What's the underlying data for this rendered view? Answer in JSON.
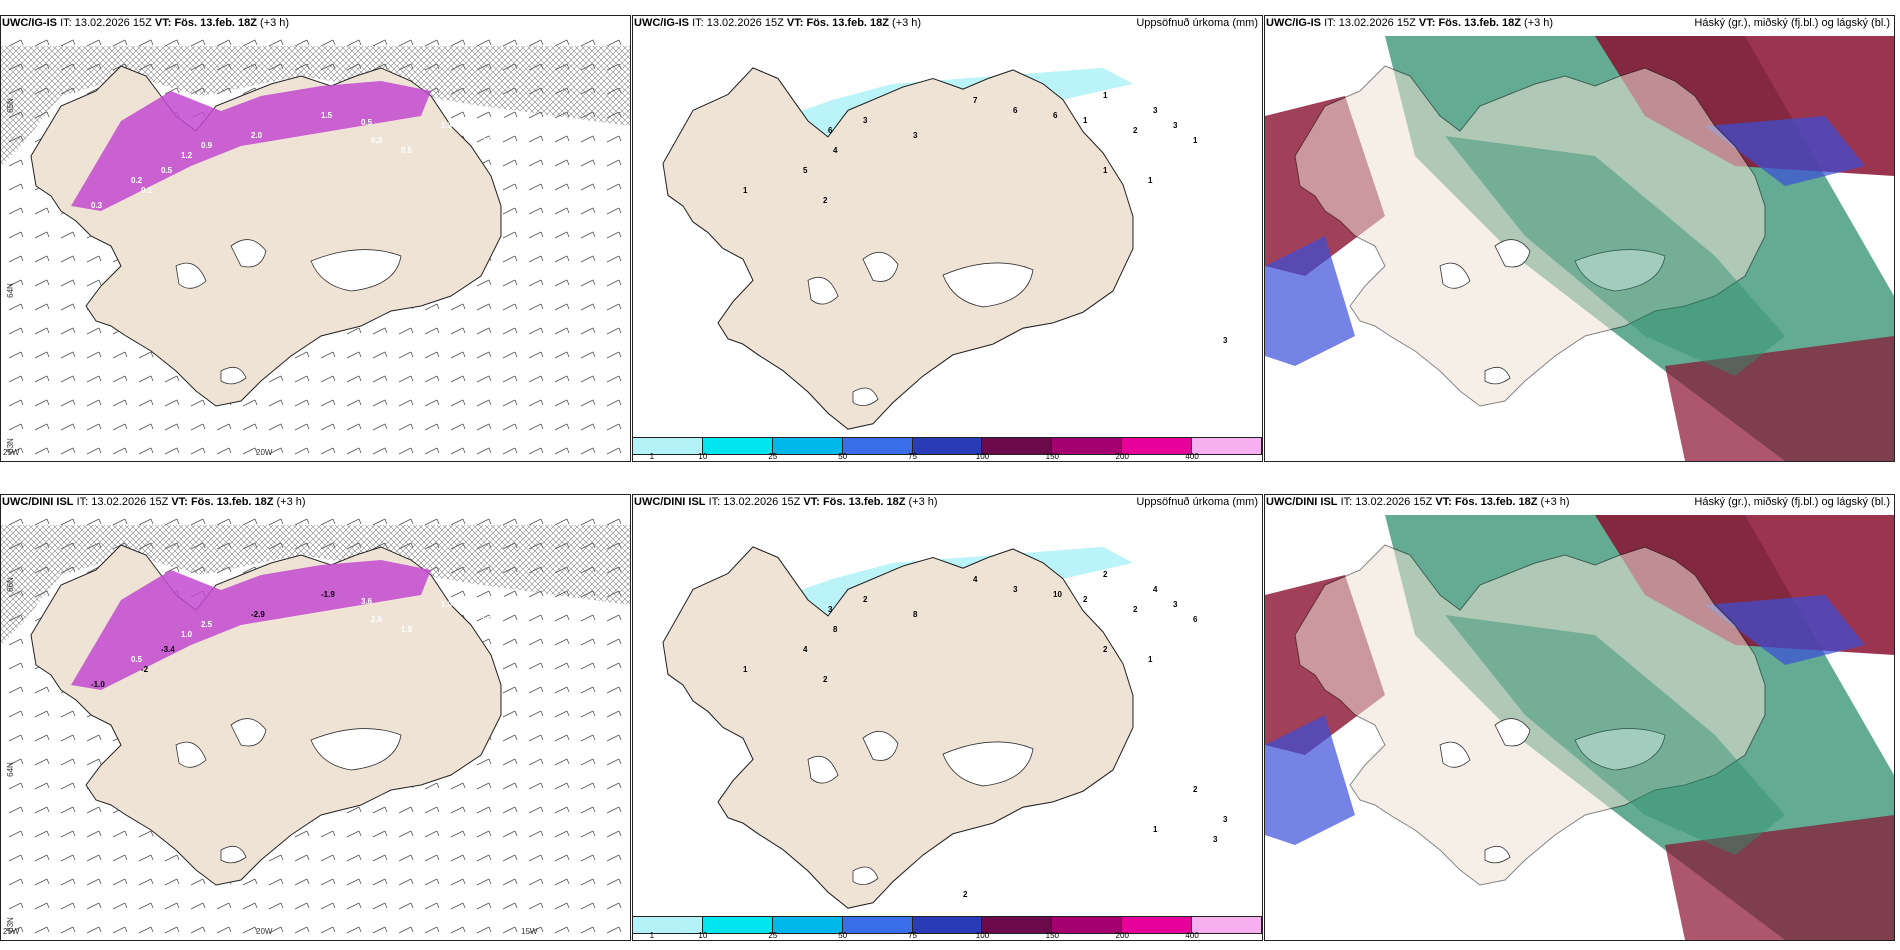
{
  "panels": [
    {
      "id": "top-left",
      "header": {
        "model": "UWC/IG-IS",
        "it_prefix": "IT:",
        "it_value": "13.02.2026 15Z",
        "vt_prefix": "VT:",
        "vt_value": "Fös. 13.feb. 18Z",
        "step": "(+3 h)",
        "right": ""
      },
      "lat_labels": [
        "65N",
        "64N",
        "63N"
      ],
      "lon_labels": [
        "25W",
        "20W"
      ],
      "values": [
        "0.3",
        "0.1",
        "0.5",
        "2.0",
        "1.5",
        "0.5",
        "0.3",
        "0.5",
        "2.3",
        "2.1",
        "2.8",
        "1.0",
        "0.9",
        "1.2",
        "0.2"
      ]
    },
    {
      "id": "top-mid",
      "header": {
        "model": "UWC/IG-IS",
        "it_prefix": "IT:",
        "it_value": "13.02.2026 15Z",
        "vt_prefix": "VT:",
        "vt_value": "Fös. 13.feb. 18Z",
        "step": "(+3 h)",
        "right": "Uppsöfnuð úrkoma (mm)"
      },
      "values": [
        "1",
        "2",
        "4",
        "5",
        "6",
        "3",
        "3",
        "7",
        "6",
        "6",
        "1",
        "1",
        "2",
        "3",
        "3",
        "1",
        "1",
        "1",
        "3"
      ],
      "colorbar": {
        "ticks": [
          "1",
          "10",
          "25",
          "50",
          "75",
          "100",
          "150",
          "200",
          "400"
        ],
        "colors": [
          "#b3f3f7",
          "#00e5ee",
          "#00b9ea",
          "#3a6ee8",
          "#2a3bb8",
          "#6a0a4a",
          "#a40070",
          "#e8009a",
          "#f6b0f0"
        ]
      }
    },
    {
      "id": "top-right",
      "header": {
        "model": "UWC/IG-IS",
        "it_prefix": "IT:",
        "it_value": "13.02.2026 15Z",
        "vt_prefix": "VT:",
        "vt_value": "Fös. 13.feb. 18Z",
        "step": "(+3 h)",
        "right": "Háský (gr.), miðský (fj.bl.) og lágský (bl.)"
      }
    },
    {
      "id": "bottom-left",
      "header": {
        "model": "UWC/DINI ISL",
        "it_prefix": "IT:",
        "it_value": "13.02.2026 15Z",
        "vt_prefix": "VT:",
        "vt_value": "Fös. 13.feb. 18Z",
        "step": "(+3 h)",
        "right": ""
      },
      "lat_labels": [
        "66N",
        "64N",
        "63N"
      ],
      "lon_labels": [
        "25W",
        "20W",
        "15W"
      ],
      "values": [
        "-1.0",
        "-2",
        "-3.4",
        "-2.9",
        "-1.9",
        "3.6",
        "2.6",
        "1.9",
        "1.0",
        "2.6",
        "1.5",
        "1.8",
        "2.5",
        "1.0",
        "0.5"
      ]
    },
    {
      "id": "bottom-mid",
      "header": {
        "model": "UWC/DINI ISL",
        "it_prefix": "IT:",
        "it_value": "13.02.2026 15Z",
        "vt_prefix": "VT:",
        "vt_value": "Fös. 13.feb. 18Z",
        "step": "(+3 h)",
        "right": "Uppsöfnuð úrkoma (mm)"
      },
      "values": [
        "1",
        "2",
        "8",
        "4",
        "3",
        "2",
        "8",
        "4",
        "3",
        "10",
        "2",
        "2",
        "2",
        "4",
        "3",
        "6",
        "2",
        "1",
        "3",
        "2",
        "3",
        "1",
        "2"
      ],
      "colorbar": {
        "ticks": [
          "1",
          "10",
          "25",
          "50",
          "75",
          "100",
          "150",
          "200",
          "400"
        ],
        "colors": [
          "#b3f3f7",
          "#00e5ee",
          "#00b9ea",
          "#3a6ee8",
          "#2a3bb8",
          "#6a0a4a",
          "#a40070",
          "#e8009a",
          "#f6b0f0"
        ]
      }
    },
    {
      "id": "bottom-right",
      "header": {
        "model": "UWC/DINI ISL",
        "it_prefix": "IT:",
        "it_value": "13.02.2026 15Z",
        "vt_prefix": "VT:",
        "vt_value": "Fös. 13.feb. 18Z",
        "step": "(+3 h)",
        "right": "Háský (gr.), miðský (fj.bl.) og lágský (bl.)"
      }
    }
  ],
  "colors": {
    "land": "#efe3d6",
    "sea": "#ffffff",
    "precip_light": "#b3f3f7",
    "snow_purple": "#c34ad0",
    "cloud_green": "#2f8f6e",
    "cloud_red": "#8a1030",
    "cloud_blue": "#3b4fd8"
  }
}
